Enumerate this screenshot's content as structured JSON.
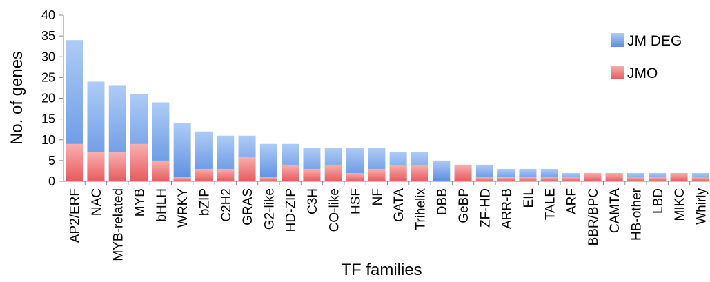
{
  "chart_data": {
    "type": "bar",
    "xlabel": "TF families",
    "ylabel": "No. of genes",
    "categories": [
      "AP2/ERF",
      "NAC",
      "MYB-related",
      "MYB",
      "bHLH",
      "WRKY",
      "bZIP",
      "C2H2",
      "GRAS",
      "G2-like",
      "HD-ZIP",
      "C3H",
      "CO-like",
      "HSF",
      "NF",
      "GATA",
      "Trihelix",
      "DBB",
      "GeBP",
      "ZF-HD",
      "ARR-B",
      "EIL",
      "TALE",
      "ARF",
      "BBR/BPC",
      "CAMTA",
      "HB-other",
      "LBD",
      "MIKC",
      "Whirly"
    ],
    "series": [
      {
        "name": "JM DEG",
        "color": "#6e9fe6",
        "values": [
          34,
          24,
          23,
          21,
          19,
          14,
          12,
          11,
          11,
          9,
          9,
          8,
          8,
          8,
          8,
          7,
          7,
          5,
          4,
          4,
          3,
          3,
          3,
          2,
          2,
          2,
          2,
          2,
          2,
          2
        ]
      },
      {
        "name": "JMO",
        "color": "#ec6a6c",
        "values": [
          9,
          7,
          7,
          9,
          5,
          1,
          3,
          3,
          6,
          1,
          4,
          3,
          4,
          2,
          3,
          4,
          4,
          0,
          4,
          1,
          1,
          1,
          1,
          1,
          2,
          2,
          1,
          1,
          2,
          1
        ]
      }
    ],
    "ylim": [
      0,
      40
    ],
    "yticks": [
      0,
      5,
      10,
      15,
      20,
      25,
      30,
      35,
      40
    ],
    "legend": "upper right"
  }
}
